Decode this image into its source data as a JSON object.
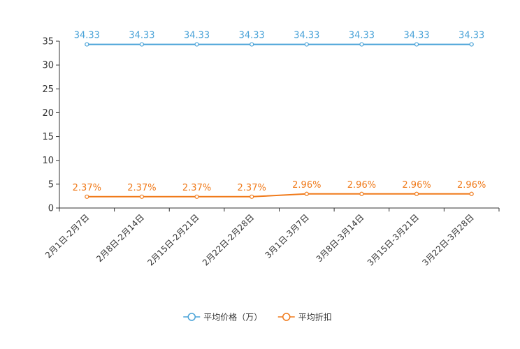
{
  "chart_data": {
    "type": "line",
    "title": "",
    "xlabel": "",
    "ylabel": "",
    "categories": [
      "2月1日-2月7日",
      "2月8日-2月14日",
      "2月15日-2月21日",
      "2月22日-2月28日",
      "3月1日-3月7日",
      "3月8日-3月14日",
      "3月15日-3月21日",
      "3月22日-3月28日"
    ],
    "ylim": [
      0,
      35
    ],
    "yticks": [
      0,
      5,
      10,
      15,
      20,
      25,
      30,
      35
    ],
    "grid": false,
    "legend_position": "bottom-center",
    "series": [
      {
        "name": "平均价格（万）",
        "color": "#4aa3d8",
        "values": [
          34.33,
          34.33,
          34.33,
          34.33,
          34.33,
          34.33,
          34.33,
          34.33
        ],
        "labels": [
          "34.33",
          "34.33",
          "34.33",
          "34.33",
          "34.33",
          "34.33",
          "34.33",
          "34.33"
        ]
      },
      {
        "name": "平均折扣",
        "color": "#f07a1a",
        "values": [
          2.37,
          2.37,
          2.37,
          2.37,
          2.96,
          2.96,
          2.96,
          2.96
        ],
        "labels": [
          "2.37%",
          "2.37%",
          "2.37%",
          "2.37%",
          "2.96%",
          "2.96%",
          "2.96%",
          "2.96%"
        ]
      }
    ]
  }
}
